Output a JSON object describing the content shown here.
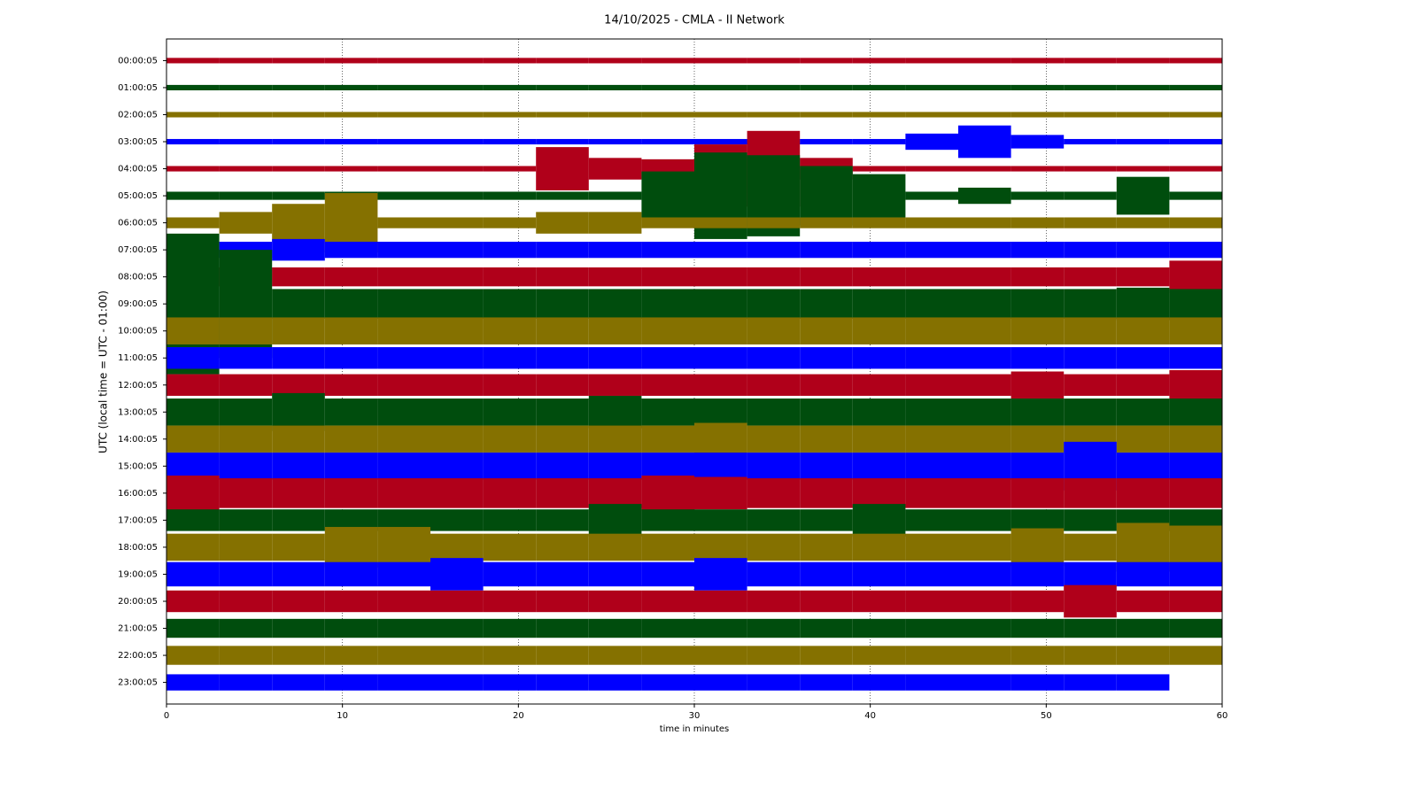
{
  "chart_data": {
    "type": "helicorder",
    "title": "14/10/2025 - CMLA - II Network",
    "x_label": "time in minutes",
    "y_label": "UTC (local time = UTC - 01:00)",
    "xlim": [
      0,
      60
    ],
    "xticks": [
      0,
      10,
      20,
      30,
      40,
      50,
      60
    ],
    "grid": true,
    "x": [
      1.5,
      4.5,
      7.5,
      10.5,
      13.5,
      16.5,
      19.5,
      22.5,
      25.5,
      28.5,
      31.5,
      34.5,
      37.5,
      40.5,
      43.5,
      46.5,
      49.5,
      52.5,
      55.5,
      58.5
    ],
    "rows": [
      {
        "label": "00:00:05",
        "color": "#b0001a",
        "values": [
          0.1,
          0.1,
          0.1,
          0.1,
          0.1,
          0.1,
          0.1,
          0.1,
          0.1,
          0.1,
          0.1,
          0.1,
          0.1,
          0.1,
          0.1,
          0.1,
          0.1,
          0.1,
          0.1,
          0.1
        ]
      },
      {
        "label": "01:00:05",
        "color": "#004d0d",
        "values": [
          0.1,
          0.1,
          0.1,
          0.1,
          0.1,
          0.1,
          0.1,
          0.1,
          0.1,
          0.1,
          0.1,
          0.1,
          0.1,
          0.1,
          0.1,
          0.1,
          0.1,
          0.1,
          0.1,
          0.1
        ]
      },
      {
        "label": "02:00:05",
        "color": "#857100",
        "values": [
          0.1,
          0.1,
          0.1,
          0.1,
          0.1,
          0.1,
          0.1,
          0.1,
          0.1,
          0.1,
          0.1,
          0.1,
          0.1,
          0.1,
          0.1,
          0.1,
          0.1,
          0.1,
          0.1,
          0.1
        ]
      },
      {
        "label": "03:00:05",
        "color": "#0000ff",
        "values": [
          0.1,
          0.1,
          0.1,
          0.1,
          0.1,
          0.1,
          0.1,
          0.1,
          0.1,
          0.1,
          0.1,
          0.1,
          0.1,
          0.1,
          0.3,
          0.6,
          0.25,
          0.1,
          0.1,
          0.1
        ]
      },
      {
        "label": "04:00:05",
        "color": "#b0001a",
        "values": [
          0.1,
          0.1,
          0.1,
          0.1,
          0.1,
          0.1,
          0.1,
          0.8,
          0.4,
          0.35,
          0.9,
          1.4,
          0.4,
          0.1,
          0.1,
          0.1,
          0.1,
          0.1,
          0.1,
          0.1
        ]
      },
      {
        "label": "05:00:05",
        "color": "#004d0d",
        "values": [
          0.15,
          0.15,
          0.15,
          0.15,
          0.15,
          0.15,
          0.15,
          0.15,
          0.15,
          0.9,
          1.6,
          1.5,
          1.1,
          0.8,
          0.15,
          0.3,
          0.15,
          0.15,
          0.7,
          0.15
        ]
      },
      {
        "label": "06:00:05",
        "color": "#857100",
        "values": [
          0.2,
          0.4,
          0.7,
          1.1,
          0.2,
          0.2,
          0.2,
          0.4,
          0.4,
          0.2,
          0.2,
          0.2,
          0.2,
          0.2,
          0.2,
          0.2,
          0.2,
          0.2,
          0.2,
          0.2
        ]
      },
      {
        "label": "07:00:05",
        "color": "#0000ff",
        "values": [
          0.3,
          0.3,
          0.4,
          0.3,
          0.3,
          0.3,
          0.3,
          0.3,
          0.3,
          0.3,
          0.3,
          0.3,
          0.3,
          0.3,
          0.3,
          0.3,
          0.3,
          0.3,
          0.3,
          0.3
        ]
      },
      {
        "label": "08:00:05",
        "color": "#b0001a",
        "values": [
          0.35,
          0.35,
          0.35,
          0.35,
          0.35,
          0.35,
          0.35,
          0.35,
          0.35,
          0.35,
          0.35,
          0.35,
          0.35,
          0.35,
          0.35,
          0.35,
          0.35,
          0.35,
          0.35,
          0.6
        ]
      },
      {
        "label": "09:00:05",
        "color": "#004d0d",
        "values": [
          2.6,
          2.0,
          0.55,
          0.55,
          0.55,
          0.55,
          0.55,
          0.55,
          0.55,
          0.55,
          0.55,
          0.55,
          0.55,
          0.55,
          0.55,
          0.55,
          0.55,
          0.55,
          0.6,
          0.55
        ]
      },
      {
        "label": "10:00:05",
        "color": "#857100",
        "values": [
          0.5,
          0.5,
          0.5,
          0.5,
          0.5,
          0.5,
          0.5,
          0.5,
          0.5,
          0.5,
          0.5,
          0.5,
          0.5,
          0.5,
          0.5,
          0.5,
          0.5,
          0.5,
          0.5,
          0.5
        ]
      },
      {
        "label": "11:00:05",
        "color": "#0000ff",
        "values": [
          0.4,
          0.4,
          0.4,
          0.4,
          0.4,
          0.4,
          0.4,
          0.4,
          0.4,
          0.4,
          0.4,
          0.4,
          0.4,
          0.4,
          0.4,
          0.4,
          0.4,
          0.4,
          0.4,
          0.4
        ]
      },
      {
        "label": "12:00:05",
        "color": "#b0001a",
        "values": [
          0.4,
          0.4,
          0.4,
          0.4,
          0.4,
          0.4,
          0.4,
          0.4,
          0.4,
          0.4,
          0.4,
          0.4,
          0.4,
          0.4,
          0.4,
          0.4,
          0.5,
          0.4,
          0.4,
          0.55
        ]
      },
      {
        "label": "13:00:05",
        "color": "#004d0d",
        "values": [
          0.5,
          0.5,
          0.7,
          0.5,
          0.5,
          0.5,
          0.5,
          0.5,
          0.6,
          0.5,
          0.5,
          0.5,
          0.5,
          0.5,
          0.5,
          0.5,
          0.5,
          0.5,
          0.5,
          0.5
        ]
      },
      {
        "label": "14:00:05",
        "color": "#857100",
        "values": [
          0.5,
          0.5,
          0.5,
          0.5,
          0.5,
          0.5,
          0.5,
          0.5,
          0.5,
          0.5,
          0.6,
          0.5,
          0.5,
          0.5,
          0.5,
          0.5,
          0.5,
          0.5,
          0.5,
          0.5
        ]
      },
      {
        "label": "15:00:05",
        "color": "#0000ff",
        "values": [
          0.5,
          0.5,
          0.5,
          0.5,
          0.5,
          0.5,
          0.5,
          0.5,
          0.5,
          0.5,
          0.5,
          0.5,
          0.5,
          0.5,
          0.5,
          0.5,
          0.5,
          0.9,
          0.5,
          0.5
        ]
      },
      {
        "label": "16:00:05",
        "color": "#b0001a",
        "values": [
          0.65,
          0.55,
          0.55,
          0.55,
          0.55,
          0.55,
          0.55,
          0.55,
          0.55,
          0.65,
          0.6,
          0.55,
          0.55,
          0.55,
          0.55,
          0.55,
          0.55,
          0.55,
          0.55,
          0.55
        ]
      },
      {
        "label": "17:00:05",
        "color": "#004d0d",
        "values": [
          0.4,
          0.4,
          0.4,
          0.4,
          0.4,
          0.4,
          0.4,
          0.4,
          0.6,
          0.4,
          0.4,
          0.4,
          0.4,
          0.6,
          0.4,
          0.4,
          0.4,
          0.4,
          0.4,
          0.4
        ]
      },
      {
        "label": "18:00:05",
        "color": "#857100",
        "values": [
          0.5,
          0.5,
          0.5,
          0.75,
          0.75,
          0.5,
          0.5,
          0.5,
          0.5,
          0.5,
          0.5,
          0.5,
          0.5,
          0.5,
          0.5,
          0.5,
          0.7,
          0.5,
          0.9,
          0.8
        ]
      },
      {
        "label": "19:00:05",
        "color": "#0000ff",
        "values": [
          0.45,
          0.45,
          0.45,
          0.45,
          0.45,
          0.6,
          0.45,
          0.45,
          0.45,
          0.45,
          0.6,
          0.45,
          0.45,
          0.45,
          0.45,
          0.45,
          0.45,
          0.45,
          0.45,
          0.45
        ]
      },
      {
        "label": "20:00:05",
        "color": "#b0001a",
        "values": [
          0.4,
          0.4,
          0.4,
          0.4,
          0.4,
          0.4,
          0.4,
          0.4,
          0.4,
          0.4,
          0.4,
          0.4,
          0.4,
          0.4,
          0.4,
          0.4,
          0.4,
          0.6,
          0.4,
          0.4
        ]
      },
      {
        "label": "21:00:05",
        "color": "#004d0d",
        "values": [
          0.35,
          0.35,
          0.35,
          0.35,
          0.35,
          0.35,
          0.35,
          0.35,
          0.35,
          0.35,
          0.35,
          0.35,
          0.35,
          0.35,
          0.35,
          0.35,
          0.35,
          0.35,
          0.35,
          0.35
        ]
      },
      {
        "label": "22:00:05",
        "color": "#857100",
        "values": [
          0.35,
          0.35,
          0.35,
          0.35,
          0.35,
          0.35,
          0.35,
          0.35,
          0.35,
          0.35,
          0.35,
          0.35,
          0.35,
          0.35,
          0.35,
          0.35,
          0.35,
          0.35,
          0.35,
          0.35
        ]
      },
      {
        "label": "23:00:05",
        "color": "#0000ff",
        "values": [
          0.3,
          0.3,
          0.3,
          0.3,
          0.3,
          0.3,
          0.3,
          0.3,
          0.3,
          0.3,
          0.3,
          0.3,
          0.3,
          0.3,
          0.3,
          0.3,
          0.3,
          0.3,
          0.3,
          null
        ]
      }
    ]
  }
}
